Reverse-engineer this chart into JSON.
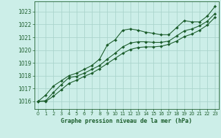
{
  "title": "Graphe pression niveau de la mer (hPa)",
  "bg_color": "#cceee8",
  "grid_color": "#aad4cc",
  "line_color": "#1a5c2a",
  "xlim": [
    -0.5,
    23.5
  ],
  "ylim": [
    1015.4,
    1023.8
  ],
  "yticks": [
    1016,
    1017,
    1018,
    1019,
    1020,
    1021,
    1022,
    1023
  ],
  "xticks": [
    0,
    1,
    2,
    3,
    4,
    5,
    6,
    7,
    8,
    9,
    10,
    11,
    12,
    13,
    14,
    15,
    16,
    17,
    18,
    19,
    20,
    21,
    22,
    23
  ],
  "series1": [
    1016.0,
    1016.5,
    1017.2,
    1017.6,
    1018.0,
    1018.2,
    1018.5,
    1018.8,
    1019.3,
    1020.4,
    1020.8,
    1021.55,
    1021.65,
    1021.55,
    1021.4,
    1021.3,
    1021.2,
    1021.2,
    1021.75,
    1022.3,
    1022.2,
    1022.2,
    1022.65,
    1023.4
  ],
  "series2": [
    1016.0,
    1016.05,
    1016.7,
    1017.3,
    1017.85,
    1017.95,
    1018.2,
    1018.5,
    1018.8,
    1019.3,
    1019.75,
    1020.25,
    1020.55,
    1020.65,
    1020.65,
    1020.6,
    1020.6,
    1020.7,
    1021.1,
    1021.5,
    1021.65,
    1021.9,
    1022.25,
    1022.85
  ],
  "series3": [
    1016.0,
    1016.0,
    1016.4,
    1016.9,
    1017.4,
    1017.65,
    1017.95,
    1018.2,
    1018.55,
    1018.95,
    1019.35,
    1019.75,
    1020.05,
    1020.2,
    1020.25,
    1020.25,
    1020.3,
    1020.45,
    1020.7,
    1021.05,
    1021.25,
    1021.55,
    1021.95,
    1022.55
  ]
}
